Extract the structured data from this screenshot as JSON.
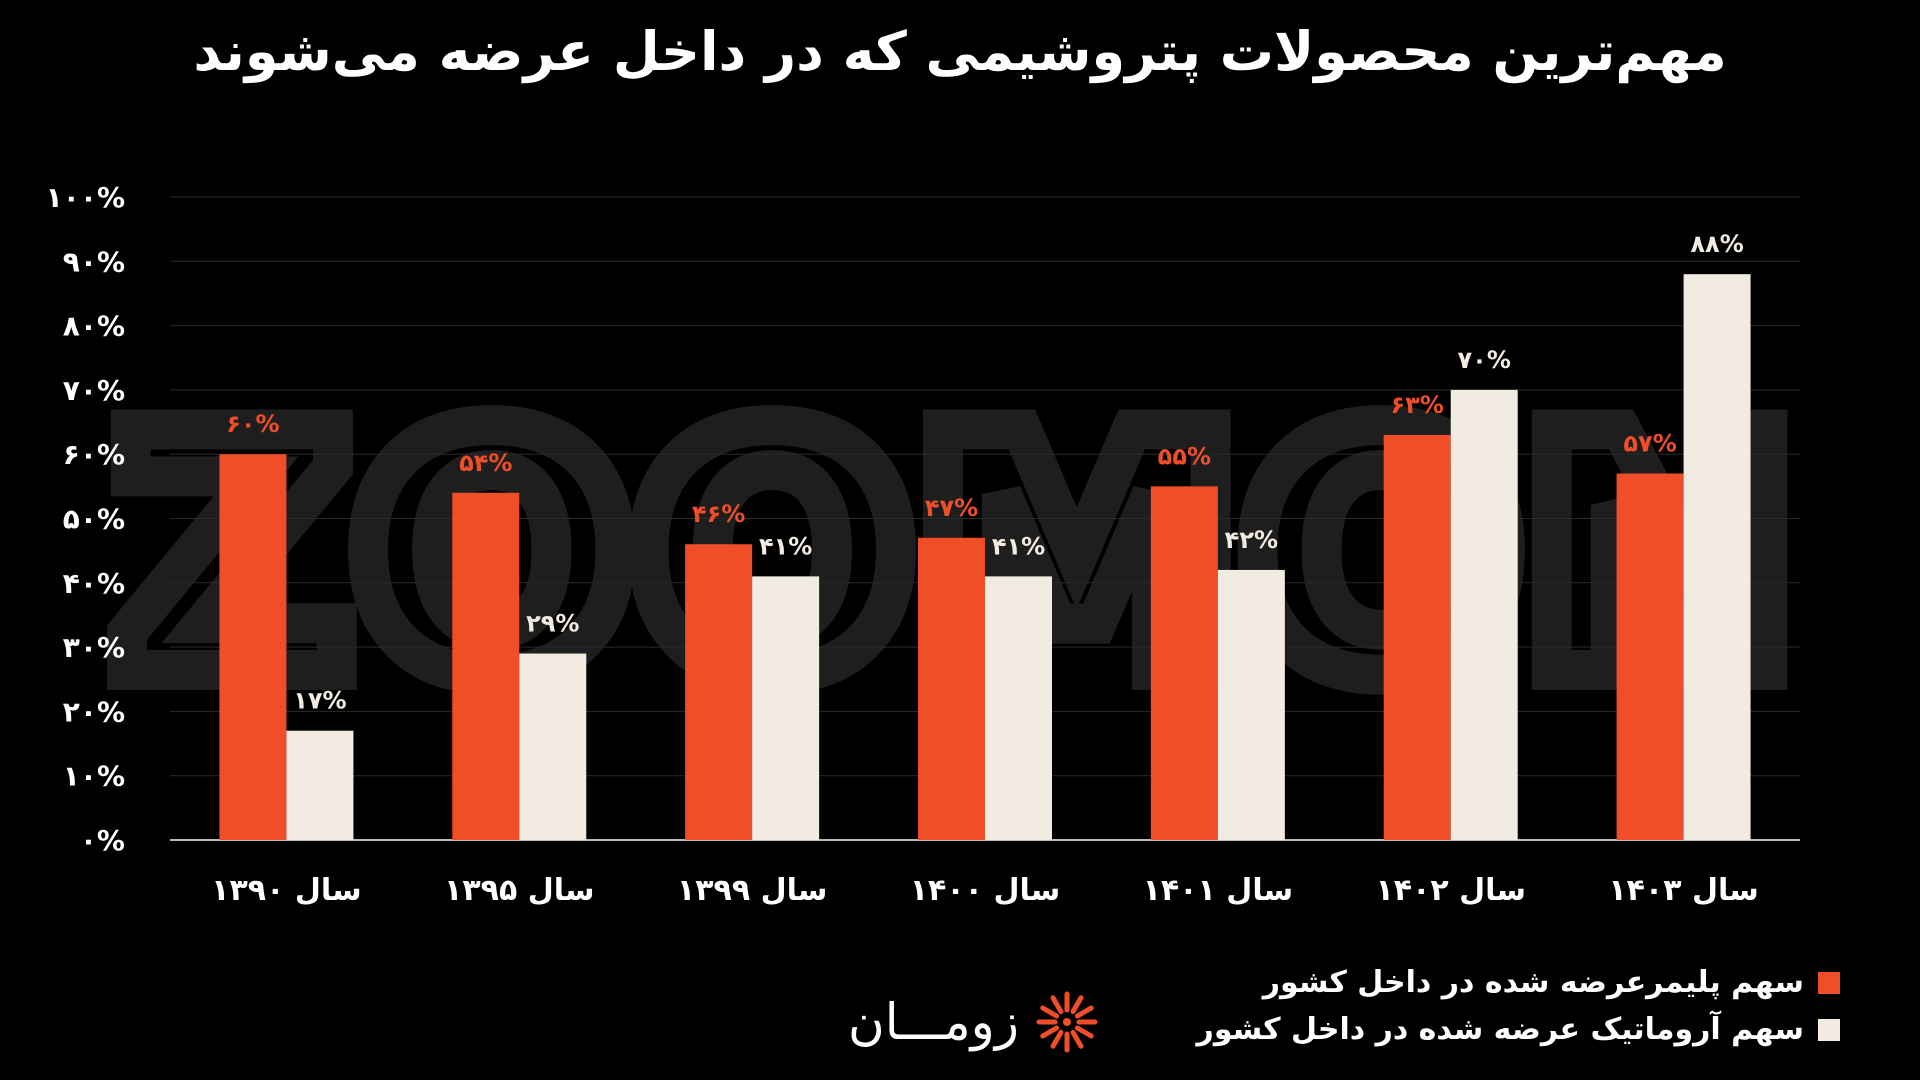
{
  "title": "مهم‌ترین محصولات پتروشیمی که در داخل عرضه می‌شوند",
  "brand": {
    "name": "زومـــان",
    "watermark": "ZOOMON",
    "accent": "#f04e29"
  },
  "chart_data": {
    "type": "bar",
    "categories": [
      "سال ۱۳۹۰",
      "سال ۱۳۹۵",
      "سال ۱۳۹۹",
      "سال ۱۴۰۰",
      "سال ۱۴۰۱",
      "سال ۱۴۰۲",
      "سال ۱۴۰۳"
    ],
    "series": [
      {
        "name": "سهم پلیمرعرضه  شده در داخل کشور",
        "color": "#f04e29",
        "values": [
          60,
          54,
          46,
          47,
          55,
          63,
          57
        ],
        "labels": [
          "۶۰%",
          "۵۴%",
          "۴۶%",
          "۴۷%",
          "۵۵%",
          "۶۳%",
          "۵۷%"
        ]
      },
      {
        "name": "سهم آروماتیک عرضه شده در داخل کشور",
        "color": "#f1ebe1",
        "values": [
          17,
          29,
          41,
          41,
          42,
          70,
          88
        ],
        "labels": [
          "۱۷%",
          "۲۹%",
          "۴۱%",
          "۴۱%",
          "۴۲%",
          "۷۰%",
          "۸۸%"
        ]
      }
    ],
    "ylim": [
      0,
      100
    ],
    "yticks": [
      "۰%",
      "۱۰%",
      "۲۰%",
      "۳۰%",
      "۴۰%",
      "۵۰%",
      "۶۰%",
      "۷۰%",
      "۸۰%",
      "۹۰%",
      "۱۰۰%"
    ],
    "grid": true,
    "legend": "bottom-right"
  }
}
